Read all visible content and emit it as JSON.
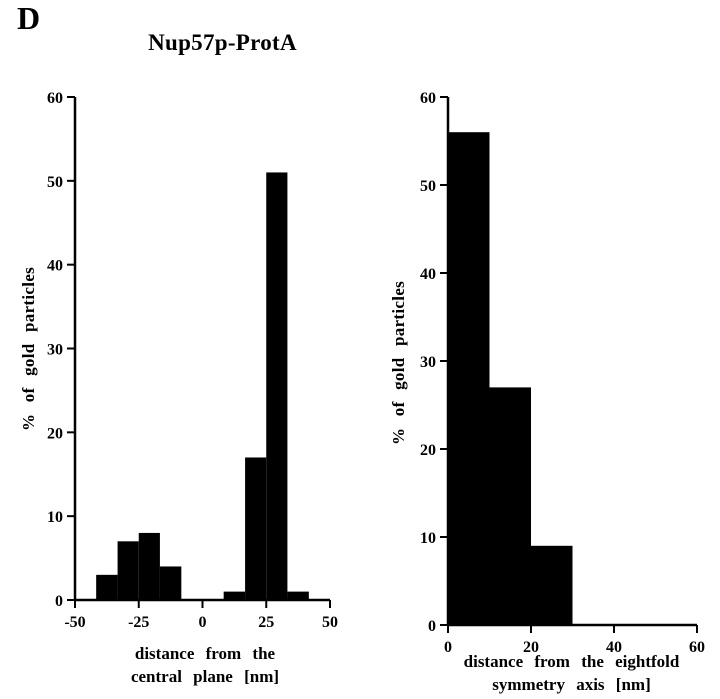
{
  "figure": {
    "panel_label": "D",
    "title": "Nup57p-ProtA"
  },
  "chart_data": [
    {
      "type": "bar",
      "subtype": "histogram",
      "name": "distance-from-central-plane-histogram",
      "ylabel": "% of gold particles",
      "xlabel": "distance from the central plane [nm]",
      "xlabel_lines": [
        "distance from the",
        "central plane [nm]"
      ],
      "xlim": [
        -50,
        50
      ],
      "ylim": [
        0,
        60
      ],
      "xticks": [
        -50,
        -25,
        0,
        25,
        50
      ],
      "yticks": [
        0,
        10,
        20,
        30,
        40,
        50,
        60
      ],
      "grid": false,
      "bar_color": "#000000",
      "bars": [
        {
          "x0": -41.7,
          "x1": -33.3,
          "value": 3
        },
        {
          "x0": -33.3,
          "x1": -25,
          "value": 7
        },
        {
          "x0": -25,
          "x1": -16.7,
          "value": 8
        },
        {
          "x0": -16.7,
          "x1": -8.3,
          "value": 4
        },
        {
          "x0": 8.3,
          "x1": 16.7,
          "value": 1
        },
        {
          "x0": 16.7,
          "x1": 25,
          "value": 17
        },
        {
          "x0": 25,
          "x1": 33.3,
          "value": 51
        },
        {
          "x0": 33.3,
          "x1": 41.7,
          "value": 1
        }
      ]
    },
    {
      "type": "bar",
      "subtype": "histogram",
      "name": "distance-from-eightfold-symmetry-axis-histogram",
      "ylabel": "% of gold particles",
      "xlabel": "distance from the eightfold symmetry axis [nm]",
      "xlabel_lines": [
        "distance from the eightfold",
        "symmetry axis [nm]"
      ],
      "xlim": [
        0,
        60
      ],
      "ylim": [
        0,
        60
      ],
      "xticks": [
        0,
        20,
        40,
        60
      ],
      "yticks": [
        0,
        10,
        20,
        30,
        40,
        50,
        60
      ],
      "grid": false,
      "bar_color": "#000000",
      "bars": [
        {
          "x0": 0,
          "x1": 10,
          "value": 56
        },
        {
          "x0": 10,
          "x1": 20,
          "value": 27
        },
        {
          "x0": 20,
          "x1": 30,
          "value": 9
        }
      ]
    }
  ]
}
